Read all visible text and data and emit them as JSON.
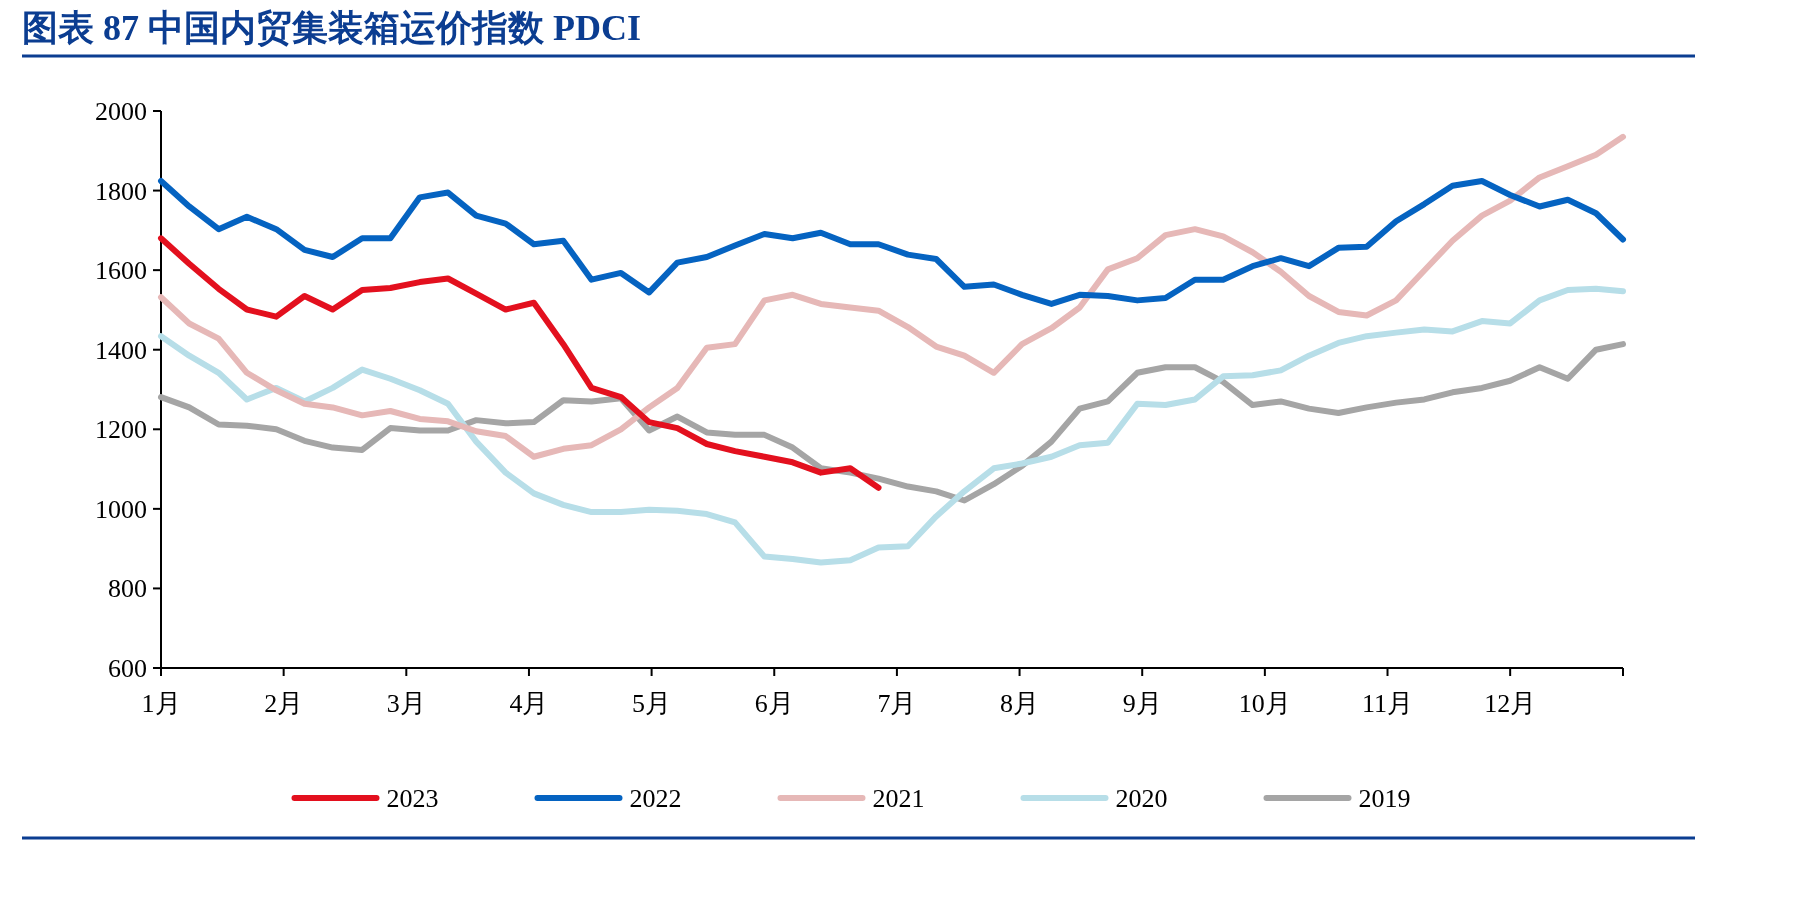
{
  "chart_data": {
    "type": "line",
    "title": "图表 87 中国内贸集装箱运价指数 PDCI",
    "x": [
      1.0,
      1.23,
      1.47,
      1.7,
      1.94,
      2.17,
      2.4,
      2.64,
      2.87,
      3.11,
      3.34,
      3.57,
      3.81,
      4.04,
      4.28,
      4.51,
      4.75,
      4.98,
      5.21,
      5.45,
      5.68,
      5.92,
      6.15,
      6.38,
      6.62,
      6.85,
      7.09,
      7.32,
      7.55,
      7.79,
      8.02,
      8.26,
      8.49,
      8.72,
      8.96,
      9.19,
      9.43,
      9.66,
      9.9,
      10.13,
      10.36,
      10.6,
      10.83,
      11.07,
      11.3,
      11.53,
      11.77,
      12.0,
      12.24,
      12.47,
      12.7,
      12.92
    ],
    "xlim": [
      1,
      12.92
    ],
    "xticks": [
      {
        "value": 1,
        "label": "1月"
      },
      {
        "value": 2,
        "label": "2月"
      },
      {
        "value": 3,
        "label": "3月"
      },
      {
        "value": 4,
        "label": "4月"
      },
      {
        "value": 5,
        "label": "5月"
      },
      {
        "value": 6,
        "label": "6月"
      },
      {
        "value": 7,
        "label": "7月"
      },
      {
        "value": 8,
        "label": "8月"
      },
      {
        "value": 9,
        "label": "9月"
      },
      {
        "value": 10,
        "label": "10月"
      },
      {
        "value": 11,
        "label": "11月"
      },
      {
        "value": 12,
        "label": "12月"
      }
    ],
    "ylim": [
      600,
      2000
    ],
    "yticks": [
      600,
      800,
      1000,
      1200,
      1400,
      1600,
      1800,
      2000
    ],
    "legend": "bottom",
    "series": [
      {
        "name": "2023",
        "color": "#e3101e",
        "values": [
          1680,
          1616,
          1553,
          1501,
          1483,
          1535,
          1501,
          1550,
          1555,
          1570,
          1579,
          1541,
          1501,
          1518,
          1414,
          1304,
          1281,
          1218,
          1203,
          1163,
          1145,
          1131,
          1117,
          1091,
          1102,
          1053,
          null,
          null,
          null,
          null,
          null,
          null,
          null,
          null,
          null,
          null,
          null,
          null,
          null,
          null,
          null,
          null,
          null,
          null,
          null,
          null,
          null,
          null,
          null,
          null,
          null,
          null
        ]
      },
      {
        "name": "2022",
        "color": "#0563c1",
        "values": [
          1824,
          1760,
          1703,
          1734,
          1703,
          1651,
          1633,
          1680,
          1680,
          1783,
          1795,
          1737,
          1717,
          1665,
          1674,
          1576,
          1593,
          1544,
          1619,
          1633,
          1662,
          1691,
          1680,
          1694,
          1665,
          1665,
          1639,
          1628,
          1558,
          1564,
          1538,
          1515,
          1538,
          1535,
          1524,
          1530,
          1576,
          1576,
          1610,
          1630,
          1610,
          1656,
          1659,
          1723,
          1766,
          1812,
          1824,
          1789,
          1760,
          1777,
          1743,
          1677
        ]
      },
      {
        "name": "2021",
        "color": "#e6b8b7",
        "values": [
          1532,
          1466,
          1428,
          1342,
          1298,
          1264,
          1255,
          1235,
          1246,
          1226,
          1220,
          1195,
          1183,
          1131,
          1151,
          1160,
          1200,
          1255,
          1304,
          1405,
          1414,
          1524,
          1538,
          1515,
          1506,
          1498,
          1457,
          1408,
          1385,
          1342,
          1414,
          1454,
          1506,
          1602,
          1630,
          1688,
          1703,
          1685,
          1645,
          1596,
          1535,
          1495,
          1486,
          1524,
          1599,
          1674,
          1737,
          1775,
          1833,
          1861,
          1890,
          1935
        ]
      },
      {
        "name": "2020",
        "color": "#b7dee8",
        "values": [
          1434,
          1385,
          1342,
          1275,
          1304,
          1270,
          1304,
          1350,
          1327,
          1298,
          1264,
          1169,
          1091,
          1039,
          1010,
          992,
          992,
          998,
          995,
          987,
          966,
          880,
          874,
          865,
          871,
          903,
          906,
          981,
          1044,
          1102,
          1114,
          1131,
          1160,
          1166,
          1264,
          1261,
          1275,
          1333,
          1336,
          1348,
          1385,
          1417,
          1434,
          1443,
          1451,
          1446,
          1472,
          1466,
          1524,
          1550,
          1553,
          1547
        ]
      },
      {
        "name": "2019",
        "color": "#a5a5a5",
        "values": [
          1281,
          1255,
          1212,
          1209,
          1200,
          1171,
          1154,
          1148,
          1203,
          1197,
          1197,
          1223,
          1215,
          1218,
          1273,
          1270,
          1278,
          1197,
          1232,
          1192,
          1186,
          1186,
          1154,
          1102,
          1091,
          1076,
          1056,
          1044,
          1021,
          1062,
          1108,
          1169,
          1252,
          1270,
          1342,
          1356,
          1356,
          1319,
          1261,
          1270,
          1252,
          1241,
          1255,
          1267,
          1275,
          1293,
          1304,
          1322,
          1356,
          1327,
          1400,
          1414
        ]
      }
    ]
  }
}
